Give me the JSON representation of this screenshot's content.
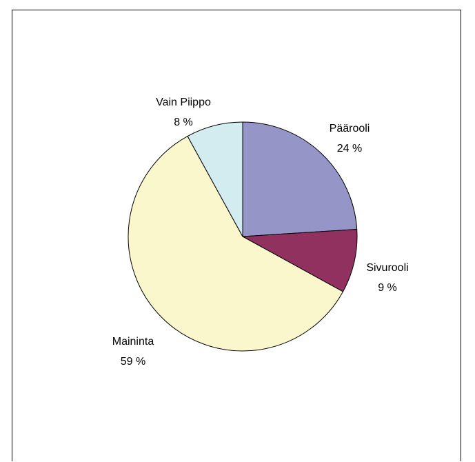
{
  "chart_data": {
    "type": "pie",
    "start_angle_deg": 0,
    "direction": "clockwise",
    "slices": [
      {
        "label": "Päärooli",
        "value": 24,
        "value_label": "24 %",
        "color": "#9595C8"
      },
      {
        "label": "Sivurooli",
        "value": 9,
        "value_label": "9 %",
        "color": "#913160"
      },
      {
        "label": "Maininta",
        "value": 59,
        "value_label": "59 %",
        "color": "#FBF7CD"
      },
      {
        "label": "Vain Piippo",
        "value": 8,
        "value_label": "8 %",
        "color": "#D2ECF0"
      }
    ]
  }
}
